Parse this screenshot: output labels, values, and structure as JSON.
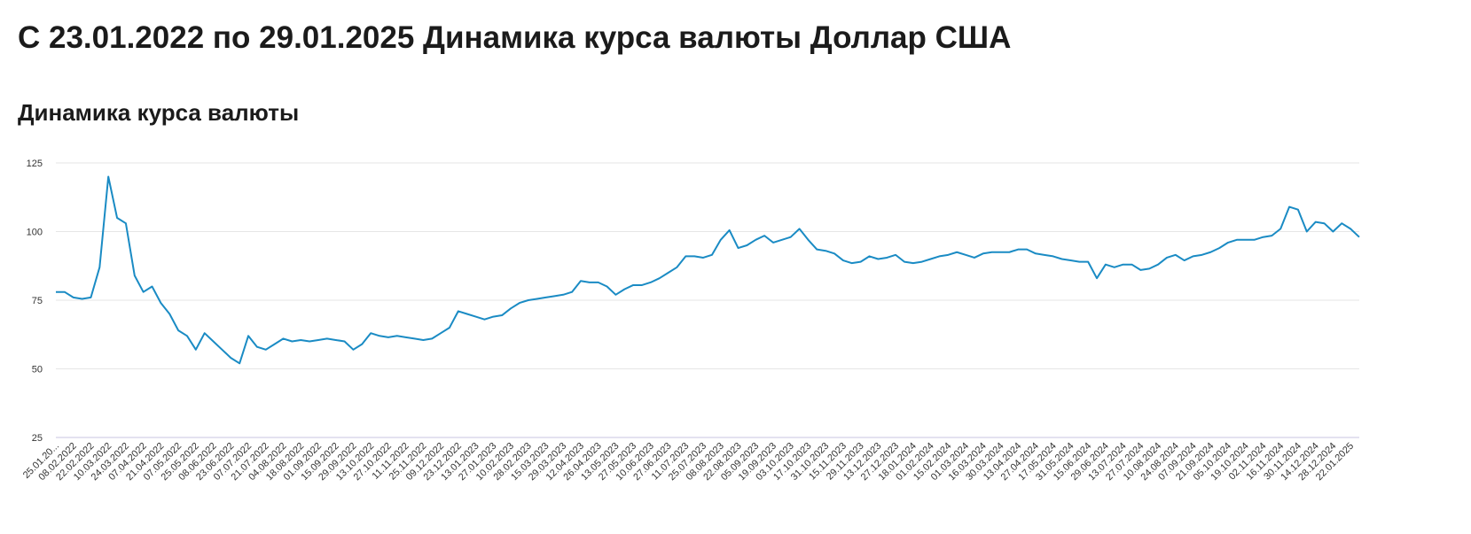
{
  "header": {
    "title": "С 23.01.2022 по 29.01.2025 Динамика курса валюты Доллар США"
  },
  "chart_data": {
    "type": "line",
    "title": "Динамика курса валюты",
    "color": "#1a8bc4",
    "categories": [
      "25.01.20...",
      null,
      "08.02.2022",
      null,
      "22.02.2022",
      null,
      "10.03.2022",
      null,
      "24.03.2022",
      null,
      "07.04.2022",
      null,
      "21.04.2022",
      null,
      "07.05.2022",
      null,
      "25.05.2022",
      null,
      "08.06.2022",
      null,
      "23.06.2022",
      null,
      "07.07.2022",
      null,
      "21.07.2022",
      null,
      "04.08.2022",
      null,
      "18.08.2022",
      null,
      "01.09.2022",
      null,
      "15.09.2022",
      null,
      "29.09.2022",
      null,
      "13.10.2022",
      null,
      "27.10.2022",
      null,
      "11.11.2022",
      null,
      "25.11.2022",
      null,
      "09.12.2022",
      null,
      "23.12.2022",
      null,
      "13.01.2023",
      null,
      "27.01.2023",
      null,
      "10.02.2023",
      null,
      "28.02.2023",
      null,
      "15.03.2023",
      null,
      "29.03.2023",
      null,
      "12.04.2023",
      null,
      "26.04.2023",
      null,
      "13.05.2023",
      null,
      "27.05.2023",
      null,
      "10.06.2023",
      null,
      "27.06.2023",
      null,
      "11.07.2023",
      null,
      "25.07.2023",
      null,
      "08.08.2023",
      null,
      "22.08.2023",
      null,
      "05.09.2023",
      null,
      "19.09.2023",
      null,
      "03.10.2023",
      null,
      "17.10.2023",
      null,
      "31.10.2023",
      null,
      "15.11.2023",
      null,
      "29.11.2023",
      null,
      "13.12.2023",
      null,
      "27.12.2023",
      null,
      "18.01.2024",
      null,
      "01.02.2024",
      null,
      "15.02.2024",
      null,
      "01.03.2024",
      null,
      "16.03.2024",
      null,
      "30.03.2024",
      null,
      "13.04.2024",
      null,
      "27.04.2024",
      null,
      "17.05.2024",
      null,
      "31.05.2024",
      null,
      "15.06.2024",
      null,
      "29.06.2024",
      null,
      "13.07.2024",
      null,
      "27.07.2024",
      null,
      "10.08.2024",
      null,
      "24.08.2024",
      null,
      "07.09.2024",
      null,
      "21.09.2024",
      null,
      "05.10.2024",
      null,
      "19.10.2024",
      null,
      "02.11.2024",
      null,
      "16.11.2024",
      null,
      "30.11.2024",
      null,
      "14.12.2024",
      null,
      "28.12.2024",
      null,
      "22.01.2025",
      null
    ],
    "values": [
      78,
      78,
      76,
      75.5,
      76,
      87,
      120,
      105,
      103,
      84,
      78,
      80,
      74,
      70,
      64,
      62,
      57,
      63,
      60,
      57,
      54,
      52,
      62,
      58,
      57,
      59,
      61,
      60,
      60.5,
      60,
      60.5,
      61,
      60.5,
      60,
      57,
      59,
      63,
      62,
      61.5,
      62,
      61.5,
      61,
      60.5,
      61,
      63,
      65,
      71,
      70,
      69,
      68,
      69,
      69.5,
      72,
      74,
      75,
      75.5,
      76,
      76.5,
      77,
      78,
      82,
      81.5,
      81.5,
      80,
      77,
      79,
      80.5,
      80.5,
      81.5,
      83,
      85,
      87,
      91,
      91,
      90.5,
      91.5,
      97,
      100.5,
      94,
      95,
      97,
      98.5,
      96,
      97,
      98,
      101,
      97,
      93.5,
      93,
      92,
      89.5,
      88.5,
      89,
      91,
      90,
      90.5,
      91.5,
      89,
      88.5,
      89,
      90,
      91,
      91.5,
      92.5,
      91.5,
      90.5,
      92,
      92.5,
      92.5,
      92.5,
      93.5,
      93.5,
      92,
      91.5,
      91,
      90,
      89.5,
      89,
      89,
      83,
      88,
      87,
      88,
      88,
      86,
      86.5,
      88,
      90.5,
      91.5,
      89.5,
      91,
      91.5,
      92.5,
      94,
      96,
      97,
      97,
      97,
      98,
      98.5,
      101,
      109,
      108,
      100,
      103.5,
      103,
      100,
      103,
      101,
      98
    ],
    "ylim": [
      25,
      125
    ],
    "yticks": [
      25,
      50,
      75,
      100,
      125
    ],
    "grid": true
  }
}
